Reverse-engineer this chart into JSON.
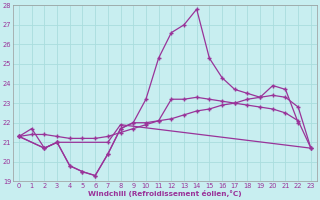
{
  "xlabel": "Windchill (Refroidissement éolien,°C)",
  "bg_color": "#c8eef0",
  "line_color": "#993399",
  "grid_color": "#aadddd",
  "xlim": [
    -0.5,
    23.5
  ],
  "ylim": [
    19,
    28
  ],
  "xticks": [
    0,
    1,
    2,
    3,
    4,
    5,
    6,
    7,
    8,
    9,
    10,
    11,
    12,
    13,
    14,
    15,
    16,
    17,
    18,
    19,
    20,
    21,
    22,
    23
  ],
  "yticks": [
    19,
    20,
    21,
    22,
    23,
    24,
    25,
    26,
    27,
    28
  ],
  "line1_x": [
    0,
    1,
    2,
    3,
    4,
    5,
    6,
    7,
    8,
    9,
    10,
    11,
    12,
    13,
    14,
    15,
    16,
    17,
    18,
    19,
    20,
    21,
    22
  ],
  "line1_y": [
    21.3,
    21.7,
    20.7,
    21.0,
    19.8,
    19.5,
    19.3,
    20.4,
    21.7,
    22.0,
    23.2,
    25.3,
    26.6,
    27.0,
    27.8,
    25.3,
    24.3,
    23.7,
    23.5,
    23.3,
    23.9,
    23.7,
    22.0
  ],
  "line2_x": [
    0,
    2,
    3,
    7,
    8,
    23
  ],
  "line2_y": [
    21.3,
    20.7,
    21.0,
    21.0,
    21.9,
    20.7
  ],
  "line3_x": [
    0,
    1,
    2,
    3,
    4,
    5,
    6,
    7,
    8,
    9,
    10,
    11,
    12,
    13,
    14,
    15,
    16,
    17,
    18,
    19,
    20,
    21,
    22,
    23
  ],
  "line3_y": [
    21.3,
    21.4,
    21.4,
    21.3,
    21.2,
    21.2,
    21.2,
    21.3,
    21.5,
    21.7,
    21.9,
    22.1,
    22.2,
    22.4,
    22.6,
    22.7,
    22.9,
    23.0,
    23.2,
    23.3,
    23.4,
    23.3,
    22.8,
    20.7
  ],
  "line4_x": [
    0,
    2,
    3,
    4,
    5,
    6,
    7,
    8,
    9,
    10,
    11,
    12,
    13,
    14,
    15,
    16,
    17,
    18,
    19,
    20,
    21,
    22,
    23
  ],
  "line4_y": [
    21.3,
    20.7,
    21.0,
    19.8,
    19.5,
    19.3,
    20.4,
    21.7,
    22.0,
    22.0,
    22.1,
    23.2,
    23.2,
    23.3,
    23.2,
    23.1,
    23.0,
    22.9,
    22.8,
    22.7,
    22.5,
    22.1,
    20.7
  ]
}
